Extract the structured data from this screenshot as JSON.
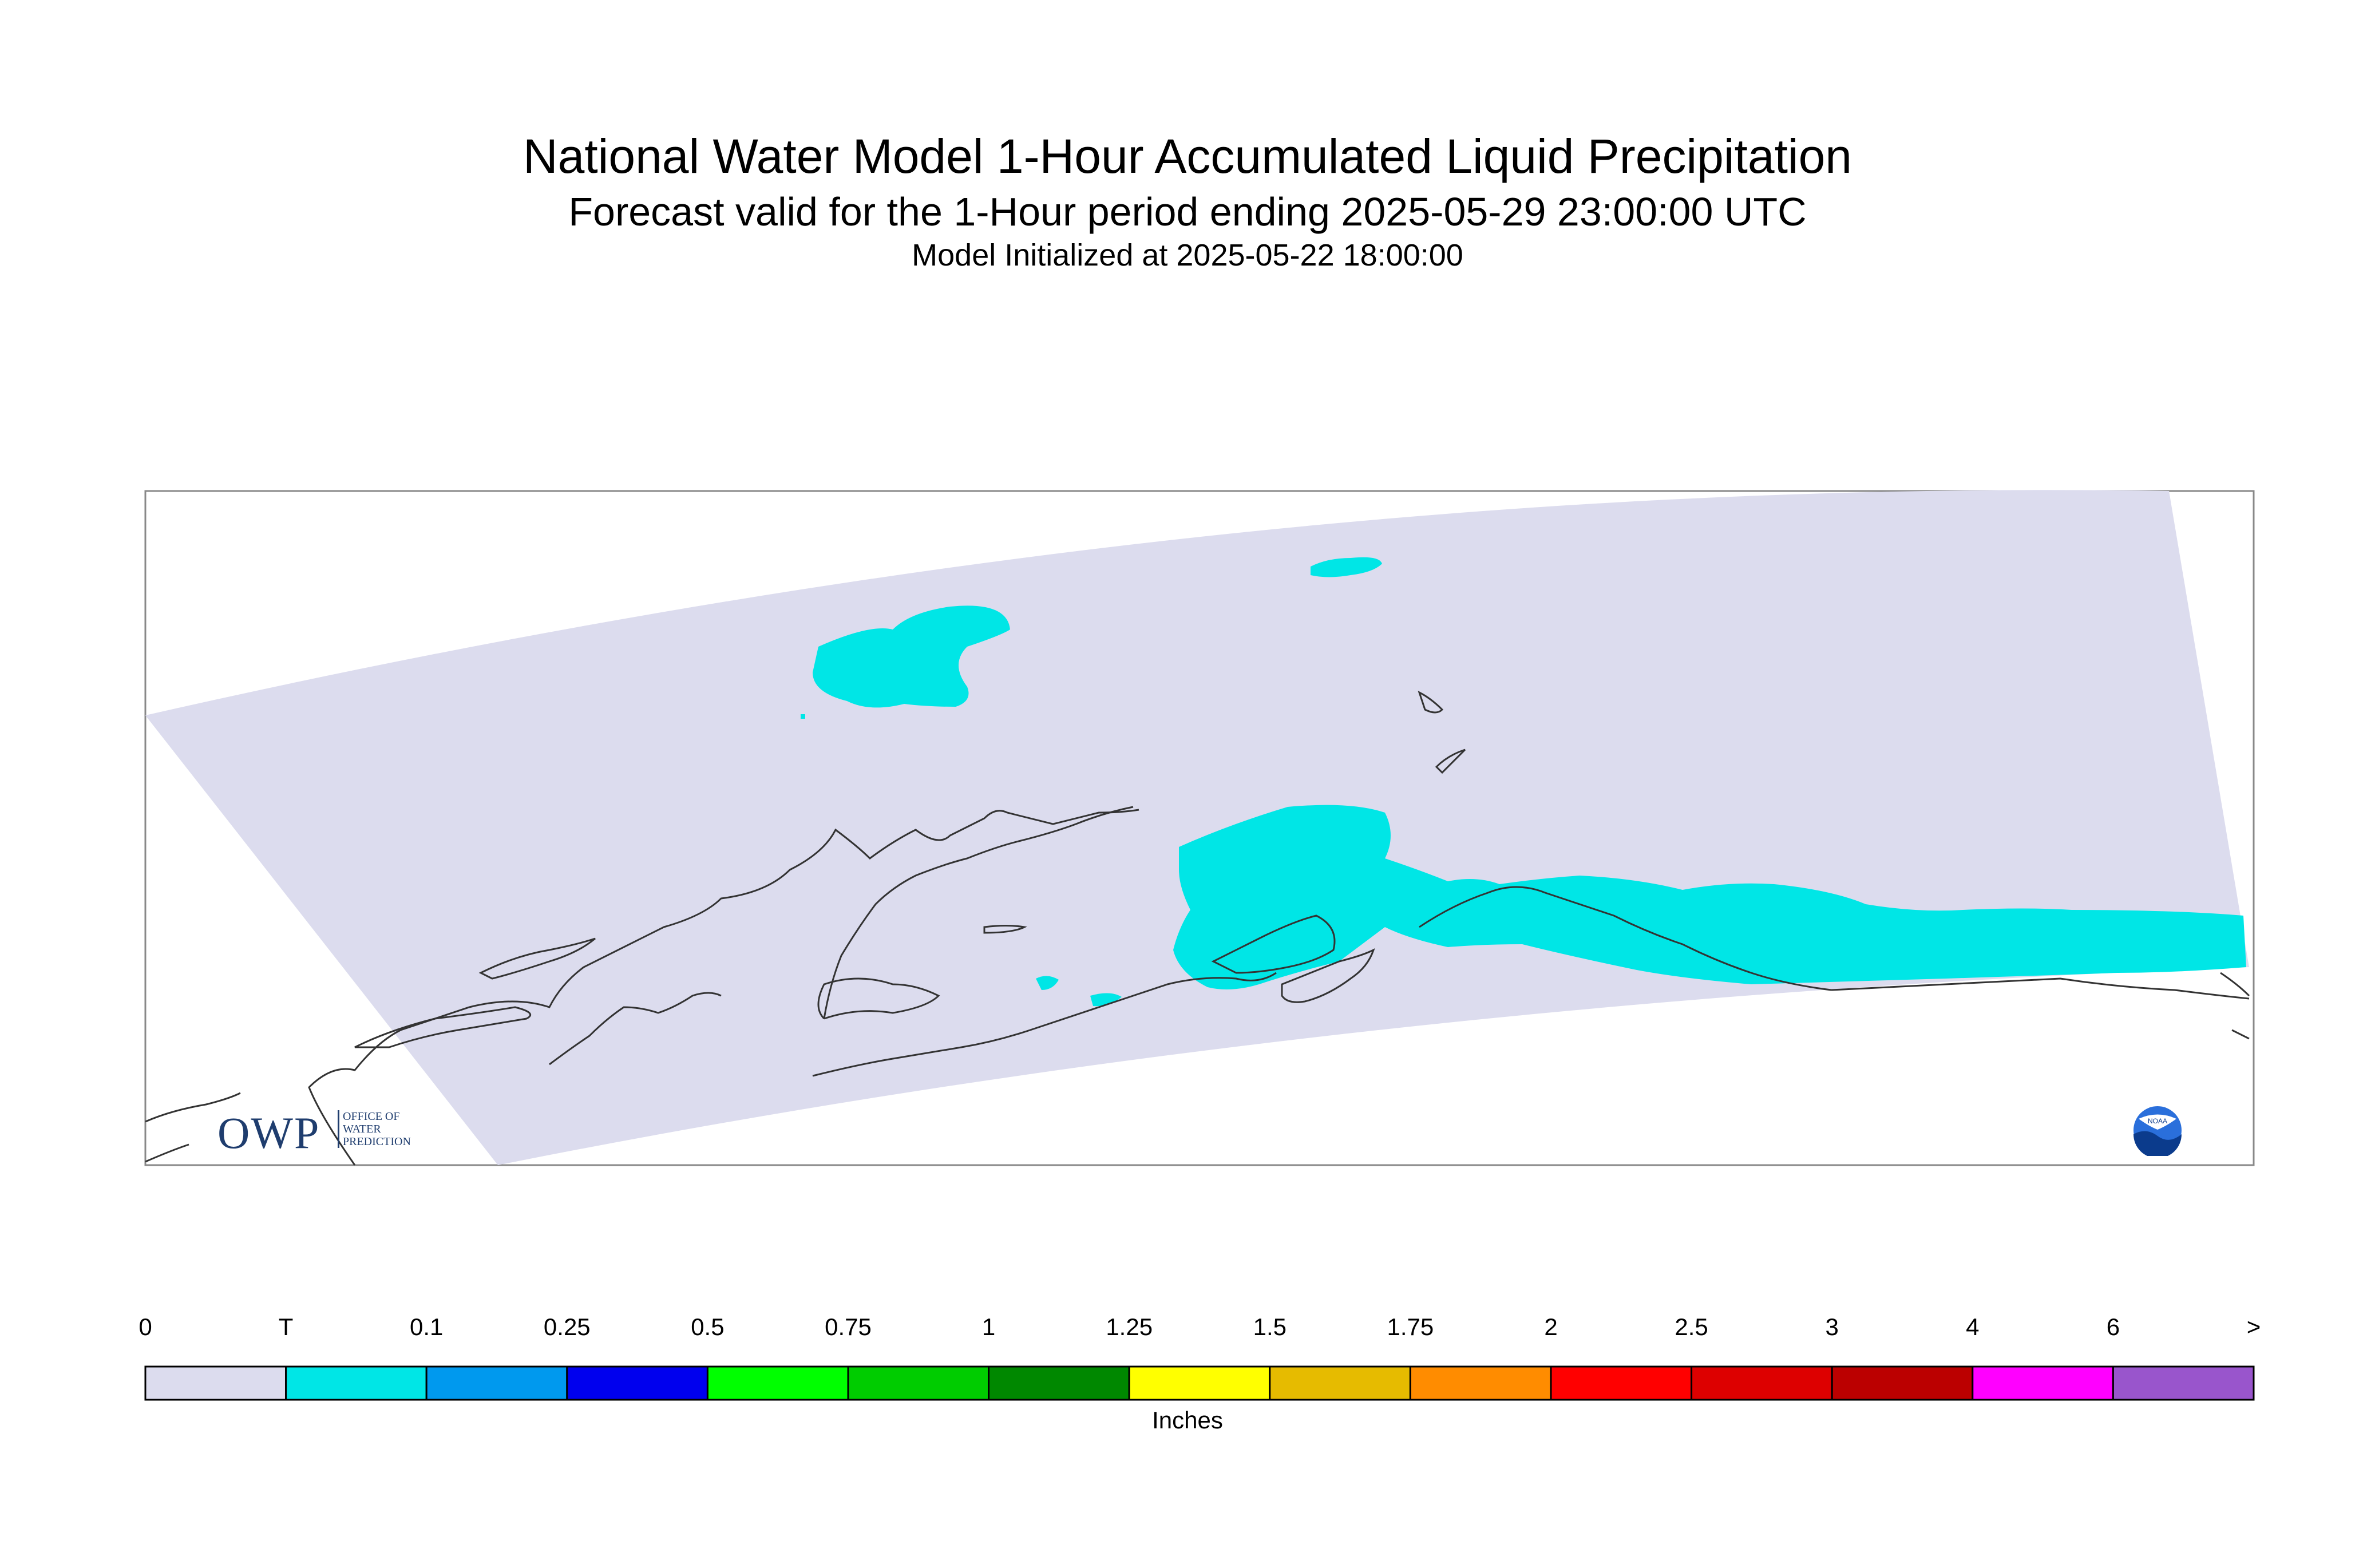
{
  "title": "National Water Model 1-Hour Accumulated Liquid Precipitation",
  "subtitle": "Forecast valid for the 1-Hour period ending 2025-05-29 23:00:00 UTC",
  "init_line": "Model Initialized at 2025-05-22 18:00:00",
  "map": {
    "region": "Alaska",
    "model_domain_color": "#dcdcee",
    "precip_color": "#00e6e6",
    "coastline_color": "#333333"
  },
  "legend": {
    "unit": "Inches",
    "ticks": [
      "0",
      "T",
      "0.1",
      "0.25",
      "0.5",
      "0.75",
      "1",
      "1.25",
      "1.5",
      "1.75",
      "2",
      "2.5",
      "3",
      "4",
      "6",
      ">"
    ],
    "colors": [
      "#dcdcee",
      "#00e6e6",
      "#0099ee",
      "#0000ee",
      "#00ff00",
      "#00cc00",
      "#008800",
      "#ffff00",
      "#e6bb00",
      "#ff8c00",
      "#ff0000",
      "#dd0000",
      "#bb0000",
      "#ff00ff",
      "#9955cc"
    ]
  },
  "logos": {
    "owp": {
      "mark": "OWP",
      "lines": [
        "OFFICE OF",
        "WATER",
        "PREDICTION"
      ]
    },
    "noaa": {
      "mark": "NOAA"
    }
  }
}
